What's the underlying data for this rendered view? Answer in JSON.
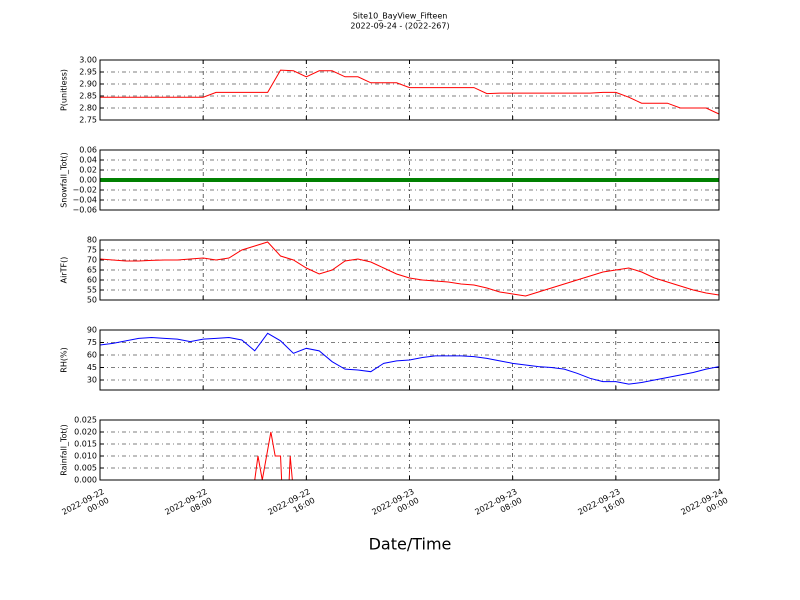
{
  "title": "Site10_BayView_Fifteen",
  "subtitle": "2022-09-24 - (2022-267)",
  "xlabel": "Date/Time",
  "chart_data": [
    {
      "type": "line",
      "ylabel": "P(unitless)",
      "xlim": [
        "2022-09-22T00:00",
        "2022-09-24T00:00"
      ],
      "ylim": [
        2.75,
        3.0
      ],
      "yticks": [
        {
          "value": 2.75,
          "label": "2.75"
        },
        {
          "value": 2.8,
          "label": "2.80"
        },
        {
          "value": 2.85,
          "label": "2.85"
        },
        {
          "value": 2.9,
          "label": "2.90"
        },
        {
          "value": 2.95,
          "label": "2.95"
        },
        {
          "value": 3.0,
          "label": "3.00"
        }
      ],
      "grid": true,
      "x": [
        "2022-09-22T00:00",
        "2022-09-22T01:00",
        "2022-09-22T02:00",
        "2022-09-22T03:00",
        "2022-09-22T04:00",
        "2022-09-22T05:00",
        "2022-09-22T06:00",
        "2022-09-22T07:00",
        "2022-09-22T08:00",
        "2022-09-22T09:00",
        "2022-09-22T10:00",
        "2022-09-22T11:00",
        "2022-09-22T12:00",
        "2022-09-22T13:00",
        "2022-09-22T14:00",
        "2022-09-22T15:00",
        "2022-09-22T16:00",
        "2022-09-22T17:00",
        "2022-09-22T18:00",
        "2022-09-22T19:00",
        "2022-09-22T20:00",
        "2022-09-22T21:00",
        "2022-09-22T22:00",
        "2022-09-22T23:00",
        "2022-09-23T00:00",
        "2022-09-23T01:00",
        "2022-09-23T02:00",
        "2022-09-23T03:00",
        "2022-09-23T04:00",
        "2022-09-23T05:00",
        "2022-09-23T06:00",
        "2022-09-23T07:00",
        "2022-09-23T08:00",
        "2022-09-23T09:00",
        "2022-09-23T10:00",
        "2022-09-23T11:00",
        "2022-09-23T12:00",
        "2022-09-23T13:00",
        "2022-09-23T14:00",
        "2022-09-23T15:00",
        "2022-09-23T16:00",
        "2022-09-23T17:00",
        "2022-09-23T18:00",
        "2022-09-23T19:00",
        "2022-09-23T20:00",
        "2022-09-23T21:00",
        "2022-09-23T22:00",
        "2022-09-23T23:00",
        "2022-09-24T00:00"
      ],
      "series": [
        {
          "color": "#ff0000",
          "values": [
            2.845,
            2.845,
            2.845,
            2.845,
            2.845,
            2.845,
            2.845,
            2.845,
            2.845,
            2.865,
            2.865,
            2.865,
            2.865,
            2.865,
            2.958,
            2.955,
            2.93,
            2.955,
            2.955,
            2.93,
            2.93,
            2.905,
            2.905,
            2.905,
            2.885,
            2.885,
            2.885,
            2.885,
            2.885,
            2.885,
            2.86,
            2.862,
            2.862,
            2.862,
            2.862,
            2.862,
            2.862,
            2.862,
            2.862,
            2.865,
            2.865,
            2.845,
            2.82,
            2.82,
            2.82,
            2.8,
            2.8,
            2.8,
            2.775
          ]
        }
      ]
    },
    {
      "type": "line",
      "ylabel": "Snowfall_Tot()",
      "xlim": [
        "2022-09-22T00:00",
        "2022-09-24T00:00"
      ],
      "ylim": [
        -0.06,
        0.06
      ],
      "yticks": [
        {
          "value": -0.06,
          "label": "−0.06"
        },
        {
          "value": -0.04,
          "label": "−0.04"
        },
        {
          "value": -0.02,
          "label": "−0.02"
        },
        {
          "value": 0,
          "label": "0.00"
        },
        {
          "value": 0.02,
          "label": "0.02"
        },
        {
          "value": 0.04,
          "label": "0.04"
        },
        {
          "value": 0.06,
          "label": "0.06"
        }
      ],
      "grid": true,
      "x": [
        "2022-09-22T00:00",
        "2022-09-22T01:00",
        "2022-09-22T02:00",
        "2022-09-22T03:00",
        "2022-09-22T04:00",
        "2022-09-22T05:00",
        "2022-09-22T06:00",
        "2022-09-22T07:00",
        "2022-09-22T08:00",
        "2022-09-22T09:00",
        "2022-09-22T10:00",
        "2022-09-22T11:00",
        "2022-09-22T12:00",
        "2022-09-22T13:00",
        "2022-09-22T14:00",
        "2022-09-22T15:00",
        "2022-09-22T16:00",
        "2022-09-22T17:00",
        "2022-09-22T18:00",
        "2022-09-22T19:00",
        "2022-09-22T20:00",
        "2022-09-22T21:00",
        "2022-09-22T22:00",
        "2022-09-22T23:00",
        "2022-09-23T00:00",
        "2022-09-23T01:00",
        "2022-09-23T02:00",
        "2022-09-23T03:00",
        "2022-09-23T04:00",
        "2022-09-23T05:00",
        "2022-09-23T06:00",
        "2022-09-23T07:00",
        "2022-09-23T08:00",
        "2022-09-23T09:00",
        "2022-09-23T10:00",
        "2022-09-23T11:00",
        "2022-09-23T12:00",
        "2022-09-23T13:00",
        "2022-09-23T14:00",
        "2022-09-23T15:00",
        "2022-09-23T16:00",
        "2022-09-23T17:00",
        "2022-09-23T18:00",
        "2022-09-23T19:00",
        "2022-09-23T20:00",
        "2022-09-23T21:00",
        "2022-09-23T22:00",
        "2022-09-23T23:00",
        "2022-09-24T00:00"
      ],
      "series": [
        {
          "color": "#008000",
          "values": [
            0,
            0,
            0,
            0,
            0,
            0,
            0,
            0,
            0,
            0,
            0,
            0,
            0,
            0,
            0,
            0,
            0,
            0,
            0,
            0,
            0,
            0,
            0,
            0,
            0,
            0,
            0,
            0,
            0,
            0,
            0,
            0,
            0,
            0,
            0,
            0,
            0,
            0,
            0,
            0,
            0,
            0,
            0,
            0,
            0,
            0,
            0,
            0,
            0
          ]
        }
      ]
    },
    {
      "type": "line",
      "ylabel": "AirTF()",
      "xlim": [
        "2022-09-22T00:00",
        "2022-09-24T00:00"
      ],
      "ylim": [
        50,
        80
      ],
      "yticks": [
        50,
        55,
        60,
        65,
        70,
        75,
        80
      ],
      "grid": true,
      "x": [
        "2022-09-22T00:00",
        "2022-09-22T01:00",
        "2022-09-22T02:00",
        "2022-09-22T03:00",
        "2022-09-22T04:00",
        "2022-09-22T05:00",
        "2022-09-22T06:00",
        "2022-09-22T07:00",
        "2022-09-22T08:00",
        "2022-09-22T09:00",
        "2022-09-22T10:00",
        "2022-09-22T11:00",
        "2022-09-22T12:00",
        "2022-09-22T13:00",
        "2022-09-22T14:00",
        "2022-09-22T15:00",
        "2022-09-22T16:00",
        "2022-09-22T17:00",
        "2022-09-22T18:00",
        "2022-09-22T19:00",
        "2022-09-22T20:00",
        "2022-09-22T21:00",
        "2022-09-22T22:00",
        "2022-09-22T23:00",
        "2022-09-23T00:00",
        "2022-09-23T01:00",
        "2022-09-23T02:00",
        "2022-09-23T03:00",
        "2022-09-23T04:00",
        "2022-09-23T05:00",
        "2022-09-23T06:00",
        "2022-09-23T07:00",
        "2022-09-23T08:00",
        "2022-09-23T09:00",
        "2022-09-23T10:00",
        "2022-09-23T11:00",
        "2022-09-23T12:00",
        "2022-09-23T13:00",
        "2022-09-23T14:00",
        "2022-09-23T15:00",
        "2022-09-23T16:00",
        "2022-09-23T17:00",
        "2022-09-23T18:00",
        "2022-09-23T19:00",
        "2022-09-23T20:00",
        "2022-09-23T21:00",
        "2022-09-23T22:00",
        "2022-09-23T23:00",
        "2022-09-24T00:00"
      ],
      "series": [
        {
          "color": "#ff0000",
          "values": [
            70.5,
            70,
            69.5,
            69.5,
            69.8,
            70,
            70,
            70.5,
            71,
            70,
            71,
            75,
            77,
            79,
            72,
            70,
            66,
            63,
            65,
            69.5,
            70.5,
            69,
            66,
            63,
            61,
            60,
            59.5,
            59,
            58,
            57.5,
            56,
            54,
            53,
            52,
            54,
            56,
            58,
            60,
            62,
            64,
            65,
            66,
            64,
            61,
            59,
            57,
            55,
            53.5,
            52.5
          ]
        }
      ]
    },
    {
      "type": "line",
      "ylabel": "RH(%)",
      "xlim": [
        "2022-09-22T00:00",
        "2022-09-24T00:00"
      ],
      "ylim": [
        18,
        90
      ],
      "yticks": [
        30,
        45,
        60,
        75,
        90
      ],
      "grid": true,
      "x": [
        "2022-09-22T00:00",
        "2022-09-22T01:00",
        "2022-09-22T02:00",
        "2022-09-22T03:00",
        "2022-09-22T04:00",
        "2022-09-22T05:00",
        "2022-09-22T06:00",
        "2022-09-22T07:00",
        "2022-09-22T08:00",
        "2022-09-22T09:00",
        "2022-09-22T10:00",
        "2022-09-22T11:00",
        "2022-09-22T12:00",
        "2022-09-22T13:00",
        "2022-09-22T14:00",
        "2022-09-22T15:00",
        "2022-09-22T16:00",
        "2022-09-22T17:00",
        "2022-09-22T18:00",
        "2022-09-22T19:00",
        "2022-09-22T20:00",
        "2022-09-22T21:00",
        "2022-09-22T22:00",
        "2022-09-22T23:00",
        "2022-09-23T00:00",
        "2022-09-23T01:00",
        "2022-09-23T02:00",
        "2022-09-23T03:00",
        "2022-09-23T04:00",
        "2022-09-23T05:00",
        "2022-09-23T06:00",
        "2022-09-23T07:00",
        "2022-09-23T08:00",
        "2022-09-23T09:00",
        "2022-09-23T10:00",
        "2022-09-23T11:00",
        "2022-09-23T12:00",
        "2022-09-23T13:00",
        "2022-09-23T14:00",
        "2022-09-23T15:00",
        "2022-09-23T16:00",
        "2022-09-23T17:00",
        "2022-09-23T18:00",
        "2022-09-23T19:00",
        "2022-09-23T20:00",
        "2022-09-23T21:00",
        "2022-09-23T22:00",
        "2022-09-23T23:00",
        "2022-09-24T00:00"
      ],
      "series": [
        {
          "color": "#0000ff",
          "values": [
            72,
            74,
            77,
            80,
            81,
            80,
            79,
            76,
            79,
            80,
            81,
            78,
            65,
            86,
            77,
            62,
            68,
            65,
            52,
            43,
            42,
            40,
            50,
            53,
            54,
            57,
            59,
            59,
            59,
            58,
            56,
            53,
            50,
            48,
            46,
            45,
            43,
            38,
            32,
            28,
            28,
            25,
            27,
            30,
            33,
            36,
            39,
            43,
            46
          ]
        }
      ]
    },
    {
      "type": "line",
      "ylabel": "Rainfall_Tot()",
      "xlim": [
        "2022-09-22T00:00",
        "2022-09-24T00:00"
      ],
      "ylim": [
        0,
        0.025
      ],
      "yticks": [
        {
          "value": 0,
          "label": "0.000"
        },
        {
          "value": 0.005,
          "label": "0.005"
        },
        {
          "value": 0.01,
          "label": "0.010"
        },
        {
          "value": 0.015,
          "label": "0.015"
        },
        {
          "value": 0.02,
          "label": "0.020"
        },
        {
          "value": 0.025,
          "label": "0.025"
        }
      ],
      "xticks": [
        {
          "value": "2022-09-22T00:00",
          "label": "2022-09-22\n00:00"
        },
        {
          "value": "2022-09-22T08:00",
          "label": "2022-09-22\n08:00"
        },
        {
          "value": "2022-09-22T16:00",
          "label": "2022-09-22\n16:00"
        },
        {
          "value": "2022-09-23T00:00",
          "label": "2022-09-23\n00:00"
        },
        {
          "value": "2022-09-23T08:00",
          "label": "2022-09-23\n08:00"
        },
        {
          "value": "2022-09-23T16:00",
          "label": "2022-09-23\n16:00"
        },
        {
          "value": "2022-09-24T00:00",
          "label": "2022-09-24\n00:00"
        }
      ],
      "grid": true,
      "x": [
        "2022-09-22T00:00",
        "2022-09-22T12:00",
        "2022-09-22T12:15",
        "2022-09-22T12:35",
        "2022-09-22T13:15",
        "2022-09-22T13:35",
        "2022-09-22T14:00",
        "2022-09-22T14:05",
        "2022-09-22T14:40",
        "2022-09-22T14:45",
        "2022-09-22T14:55",
        "2022-09-24T00:00"
      ],
      "series": [
        {
          "color": "#ff0000",
          "values": [
            0,
            0,
            0.01,
            0,
            0.02,
            0.01,
            0.01,
            0,
            0,
            0.01,
            0,
            0
          ]
        }
      ]
    }
  ]
}
